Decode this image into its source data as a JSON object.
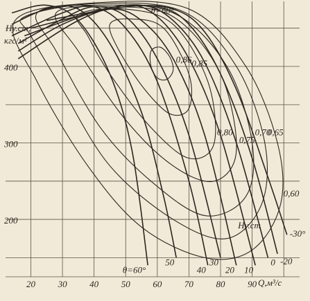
{
  "chart_data": {
    "type": "line",
    "ylabel": [
      "Hу.ст,",
      "кгс/м²"
    ],
    "xlabel": "Q,м³/с",
    "xlim": [
      12,
      105
    ],
    "ylim": [
      125,
      485
    ],
    "xticks": [
      20,
      30,
      40,
      50,
      60,
      70,
      80,
      90
    ],
    "xminor": [
      100
    ],
    "yticks": [
      200,
      300,
      400
    ],
    "yminor": [
      150,
      250,
      350,
      450
    ],
    "grid": true,
    "color": "#2b2620",
    "series": [
      {
        "name": "θ=60°",
        "x": [
          14,
          25,
          35,
          45,
          52,
          57
        ],
        "values": [
          470,
          480,
          460,
          390,
          290,
          140
        ]
      },
      {
        "name": "50",
        "x": [
          14,
          25,
          35,
          45,
          55,
          62,
          66
        ],
        "values": [
          455,
          475,
          475,
          430,
          340,
          230,
          150
        ]
      },
      {
        "name": "40",
        "x": [
          14,
          30,
          40,
          50,
          60,
          70,
          76
        ],
        "values": [
          440,
          470,
          478,
          450,
          380,
          250,
          140
        ]
      },
      {
        "name": "30",
        "x": [
          16,
          30,
          40,
          50,
          60,
          70,
          80
        ],
        "values": [
          430,
          462,
          478,
          465,
          410,
          310,
          150
        ]
      },
      {
        "name": "20",
        "x": [
          16,
          30,
          45,
          55,
          65,
          75,
          85
        ],
        "values": [
          420,
          455,
          475,
          460,
          410,
          310,
          140
        ]
      },
      {
        "name": "10",
        "x": [
          16,
          35,
          50,
          60,
          70,
          80,
          91
        ],
        "values": [
          410,
          460,
          480,
          465,
          410,
          310,
          140
        ]
      },
      {
        "name": "0",
        "x": [
          18,
          40,
          55,
          65,
          75,
          85,
          95
        ],
        "values": [
          440,
          472,
          480,
          460,
          405,
          300,
          150
        ]
      },
      {
        "name": "-20",
        "x": [
          20,
          45,
          60,
          70,
          80,
          90,
          98
        ],
        "values": [
          450,
          475,
          478,
          455,
          390,
          280,
          155
        ]
      },
      {
        "name": "-30°",
        "x": [
          25,
          50,
          65,
          75,
          85,
          95,
          101
        ],
        "values": [
          460,
          478,
          475,
          445,
          370,
          255,
          180
        ]
      }
    ],
    "contours": [
      {
        "label": "0,86",
        "x": [
          58,
          61,
          64,
          65,
          63,
          60,
          58
        ],
        "values": [
          420,
          425,
          412,
          395,
          383,
          385,
          400
        ]
      },
      {
        "label": "0,85",
        "x": [
          45,
          52,
          62,
          70,
          70,
          64,
          56,
          48
        ],
        "values": [
          455,
          462,
          450,
          390,
          345,
          338,
          370,
          420
        ]
      },
      {
        "label": "0,80",
        "x": [
          35,
          50,
          65,
          76,
          78,
          70,
          58,
          45,
          38
        ],
        "values": [
          468,
          475,
          455,
          380,
          300,
          280,
          320,
          390,
          440
        ]
      },
      {
        "label": "0,75",
        "x": [
          28,
          45,
          65,
          80,
          85,
          78,
          65,
          50,
          35
        ],
        "values": [
          470,
          478,
          465,
          390,
          290,
          250,
          270,
          330,
          420
        ]
      },
      {
        "label": "0,70",
        "x": [
          22,
          40,
          65,
          82,
          90,
          88,
          75,
          58,
          42,
          28
        ],
        "values": [
          470,
          480,
          470,
          400,
          300,
          230,
          205,
          250,
          320,
          420
        ]
      },
      {
        "label": "0,65",
        "x": [
          18,
          40,
          68,
          85,
          94,
          93,
          82,
          65,
          45,
          30,
          20
        ],
        "values": [
          465,
          482,
          472,
          400,
          300,
          220,
          175,
          200,
          270,
          370,
          440
        ]
      },
      {
        "label": "0,60",
        "x": [
          15,
          40,
          70,
          88,
          98,
          99,
          90,
          75,
          55,
          38,
          22
        ],
        "values": [
          460,
          483,
          475,
          400,
          300,
          220,
          160,
          150,
          190,
          270,
          380
        ]
      }
    ],
    "annotations": [
      "θ=60°",
      "Hу.ст"
    ]
  }
}
